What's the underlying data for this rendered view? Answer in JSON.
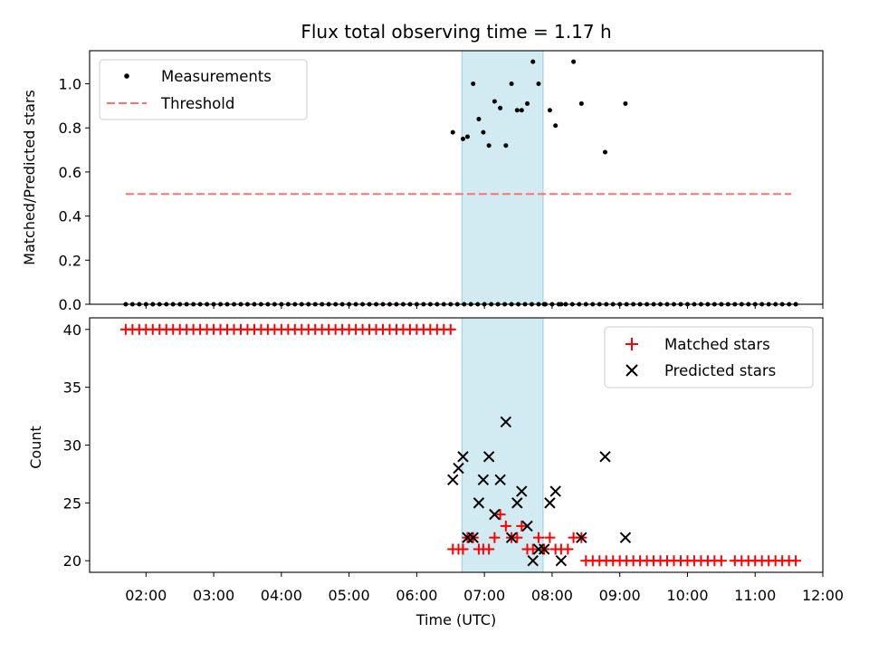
{
  "chart_data": [
    {
      "type": "scatter",
      "title": "Flux total observing time = 1.17 h",
      "xlabel": "",
      "ylabel": "Matched/Predicted stars",
      "xlim": [
        "01:10",
        "12:00"
      ],
      "ylim": [
        0,
        1.15
      ],
      "yticks": [
        "0.0",
        "0.2",
        "0.4",
        "0.6",
        "0.8",
        "1.0"
      ],
      "yticks_values": [
        0,
        0.2,
        0.4,
        0.6,
        0.8,
        1.0
      ],
      "grid": false,
      "legend": "upper-left",
      "shaded_interval": [
        "06:40",
        "07:52"
      ],
      "shade_color": "#add8e6",
      "series": [
        {
          "name": "Measurements",
          "marker": "dot",
          "color": "#000000",
          "x": [
            "01:42",
            "01:48",
            "01:54",
            "02:00",
            "02:06",
            "02:12",
            "02:18",
            "02:24",
            "02:30",
            "02:36",
            "02:42",
            "02:48",
            "02:54",
            "03:00",
            "03:06",
            "03:12",
            "03:18",
            "03:24",
            "03:30",
            "03:36",
            "03:42",
            "03:48",
            "03:54",
            "04:00",
            "04:06",
            "04:12",
            "04:18",
            "04:24",
            "04:30",
            "04:36",
            "04:42",
            "04:48",
            "04:54",
            "05:00",
            "05:06",
            "05:12",
            "05:18",
            "05:24",
            "05:30",
            "05:36",
            "05:42",
            "05:48",
            "05:54",
            "06:00",
            "06:06",
            "06:12",
            "06:18",
            "06:24",
            "06:30",
            "06:36",
            "06:42",
            "06:48",
            "06:54",
            "07:00",
            "07:06",
            "07:12",
            "07:18",
            "07:24",
            "07:30",
            "07:36",
            "07:42",
            "07:48",
            "07:54",
            "08:00",
            "08:06",
            "08:12",
            "08:18",
            "08:24",
            "08:30",
            "08:36",
            "08:42",
            "08:48",
            "08:54",
            "09:00",
            "09:06",
            "09:12",
            "09:18",
            "09:24",
            "09:30",
            "09:36",
            "09:42",
            "09:48",
            "09:54",
            "10:00",
            "10:06",
            "10:12",
            "10:18",
            "10:24",
            "10:30",
            "10:36",
            "10:42",
            "10:48",
            "10:54",
            "11:00",
            "11:06",
            "11:12",
            "11:18",
            "11:24",
            "11:30",
            "11:36"
          ],
          "y": [
            0,
            0,
            0,
            0,
            0,
            0,
            0,
            0,
            0,
            0,
            0,
            0,
            0,
            0,
            0,
            0,
            0,
            0,
            0,
            0,
            0,
            0,
            0,
            0,
            0,
            0,
            0,
            0,
            0,
            0,
            0,
            0,
            0,
            0,
            0,
            0,
            0,
            0,
            0,
            0,
            0,
            0,
            0,
            0,
            0,
            0,
            0,
            0,
            0,
            0,
            0,
            0,
            0,
            0,
            0,
            0,
            0,
            0,
            0,
            0,
            0,
            0,
            0,
            0,
            0,
            0,
            0,
            0,
            0,
            0,
            0,
            0,
            0,
            0,
            0,
            0,
            0,
            0,
            0,
            0,
            0,
            0,
            0,
            0,
            0,
            0,
            0,
            0,
            0,
            0,
            0,
            0,
            0,
            0,
            0,
            0,
            0,
            0,
            0,
            0
          ]
        },
        {
          "name": "",
          "marker": "dot",
          "color": "#000000",
          "x": [
            "06:32",
            "06:41",
            "06:45",
            "06:50",
            "06:55",
            "06:59",
            "07:04",
            "07:09",
            "07:14",
            "07:19",
            "07:24",
            "07:29",
            "07:33",
            "07:38",
            "07:43",
            "07:48",
            "07:53",
            "07:58",
            "08:03",
            "08:08",
            "08:19",
            "08:26",
            "08:47",
            "09:05"
          ],
          "y": [
            0.78,
            0.75,
            0.76,
            1.0,
            0.84,
            0.78,
            0.72,
            0.92,
            0.89,
            0.72,
            1.0,
            0.88,
            0.88,
            0.91,
            1.1,
            1.0,
            0.0,
            0.88,
            0.81,
            0.0,
            1.1,
            0.91,
            0.69,
            0.91
          ]
        },
        {
          "name": "Threshold",
          "type": "line",
          "dashed": true,
          "color": "#ff7070",
          "x": [
            "01:42",
            "11:32"
          ],
          "y": [
            0.5,
            0.5
          ]
        }
      ]
    },
    {
      "type": "scatter",
      "title": "",
      "xlabel": "Time (UTC)",
      "ylabel": "Count",
      "xlim": [
        "01:10",
        "12:00"
      ],
      "xticks": [
        "02:00",
        "03:00",
        "04:00",
        "05:00",
        "06:00",
        "07:00",
        "08:00",
        "09:00",
        "10:00",
        "11:00",
        "12:00"
      ],
      "ylim": [
        19,
        41
      ],
      "yticks": [
        "20",
        "25",
        "30",
        "35",
        "40"
      ],
      "yticks_values": [
        20,
        25,
        30,
        35,
        40
      ],
      "grid": false,
      "legend": "upper-right",
      "shaded_interval": [
        "06:40",
        "07:52"
      ],
      "shade_color": "#add8e6",
      "series": [
        {
          "name": "Matched stars",
          "marker": "plus",
          "color": "#ff0000",
          "x": [
            "01:42",
            "01:48",
            "01:54",
            "02:00",
            "02:06",
            "02:12",
            "02:18",
            "02:24",
            "02:30",
            "02:36",
            "02:42",
            "02:48",
            "02:54",
            "03:00",
            "03:06",
            "03:12",
            "03:18",
            "03:24",
            "03:30",
            "03:36",
            "03:42",
            "03:48",
            "03:54",
            "04:00",
            "04:06",
            "04:12",
            "04:18",
            "04:24",
            "04:30",
            "04:36",
            "04:42",
            "04:48",
            "04:54",
            "05:00",
            "05:06",
            "05:12",
            "05:18",
            "05:24",
            "05:30",
            "05:36",
            "05:42",
            "05:48",
            "05:54",
            "06:00",
            "06:06",
            "06:12",
            "06:18",
            "06:24",
            "06:30",
            "06:32",
            "06:37",
            "06:41",
            "06:45",
            "06:50",
            "06:55",
            "06:59",
            "07:04",
            "07:09",
            "07:14",
            "07:19",
            "07:24",
            "07:29",
            "07:33",
            "07:38",
            "07:43",
            "07:48",
            "07:53",
            "07:58",
            "08:03",
            "08:08",
            "08:14",
            "08:19",
            "08:26",
            "08:30",
            "08:36",
            "08:42",
            "08:48",
            "08:54",
            "09:00",
            "09:06",
            "09:12",
            "09:18",
            "09:24",
            "09:30",
            "09:36",
            "09:42",
            "09:48",
            "09:54",
            "10:00",
            "10:06",
            "10:12",
            "10:18",
            "10:24",
            "10:30",
            "10:42",
            "10:48",
            "10:54",
            "11:00",
            "11:06",
            "11:12",
            "11:18",
            "11:24",
            "11:30",
            "11:36"
          ],
          "y": [
            40,
            40,
            40,
            40,
            40,
            40,
            40,
            40,
            40,
            40,
            40,
            40,
            40,
            40,
            40,
            40,
            40,
            40,
            40,
            40,
            40,
            40,
            40,
            40,
            40,
            40,
            40,
            40,
            40,
            40,
            40,
            40,
            40,
            40,
            40,
            40,
            40,
            40,
            40,
            40,
            40,
            40,
            40,
            40,
            40,
            40,
            40,
            40,
            40,
            21,
            21,
            21,
            22,
            22,
            21,
            21,
            21,
            22,
            24,
            23,
            22,
            22,
            23,
            21,
            21,
            22,
            21,
            22,
            21,
            21,
            21,
            22,
            22,
            20,
            20,
            20,
            20,
            20,
            20,
            20,
            20,
            20,
            20,
            20,
            20,
            20,
            20,
            20,
            20,
            20,
            20,
            20,
            20,
            20,
            20,
            20,
            20,
            20,
            20,
            20,
            20,
            20,
            20,
            20
          ]
        },
        {
          "name": "Predicted stars",
          "marker": "x",
          "color": "#000000",
          "x": [
            "06:32",
            "06:37",
            "06:41",
            "06:45",
            "06:50",
            "06:55",
            "06:59",
            "07:04",
            "07:09",
            "07:14",
            "07:19",
            "07:24",
            "07:29",
            "07:33",
            "07:38",
            "07:43",
            "07:48",
            "07:53",
            "07:58",
            "08:03",
            "08:08",
            "08:26",
            "08:47",
            "09:05"
          ],
          "y": [
            27,
            28,
            29,
            22,
            22,
            25,
            27,
            29,
            24,
            27,
            32,
            22,
            25,
            26,
            23,
            20,
            21,
            21,
            25,
            26,
            20,
            22,
            29,
            22
          ]
        }
      ]
    }
  ]
}
